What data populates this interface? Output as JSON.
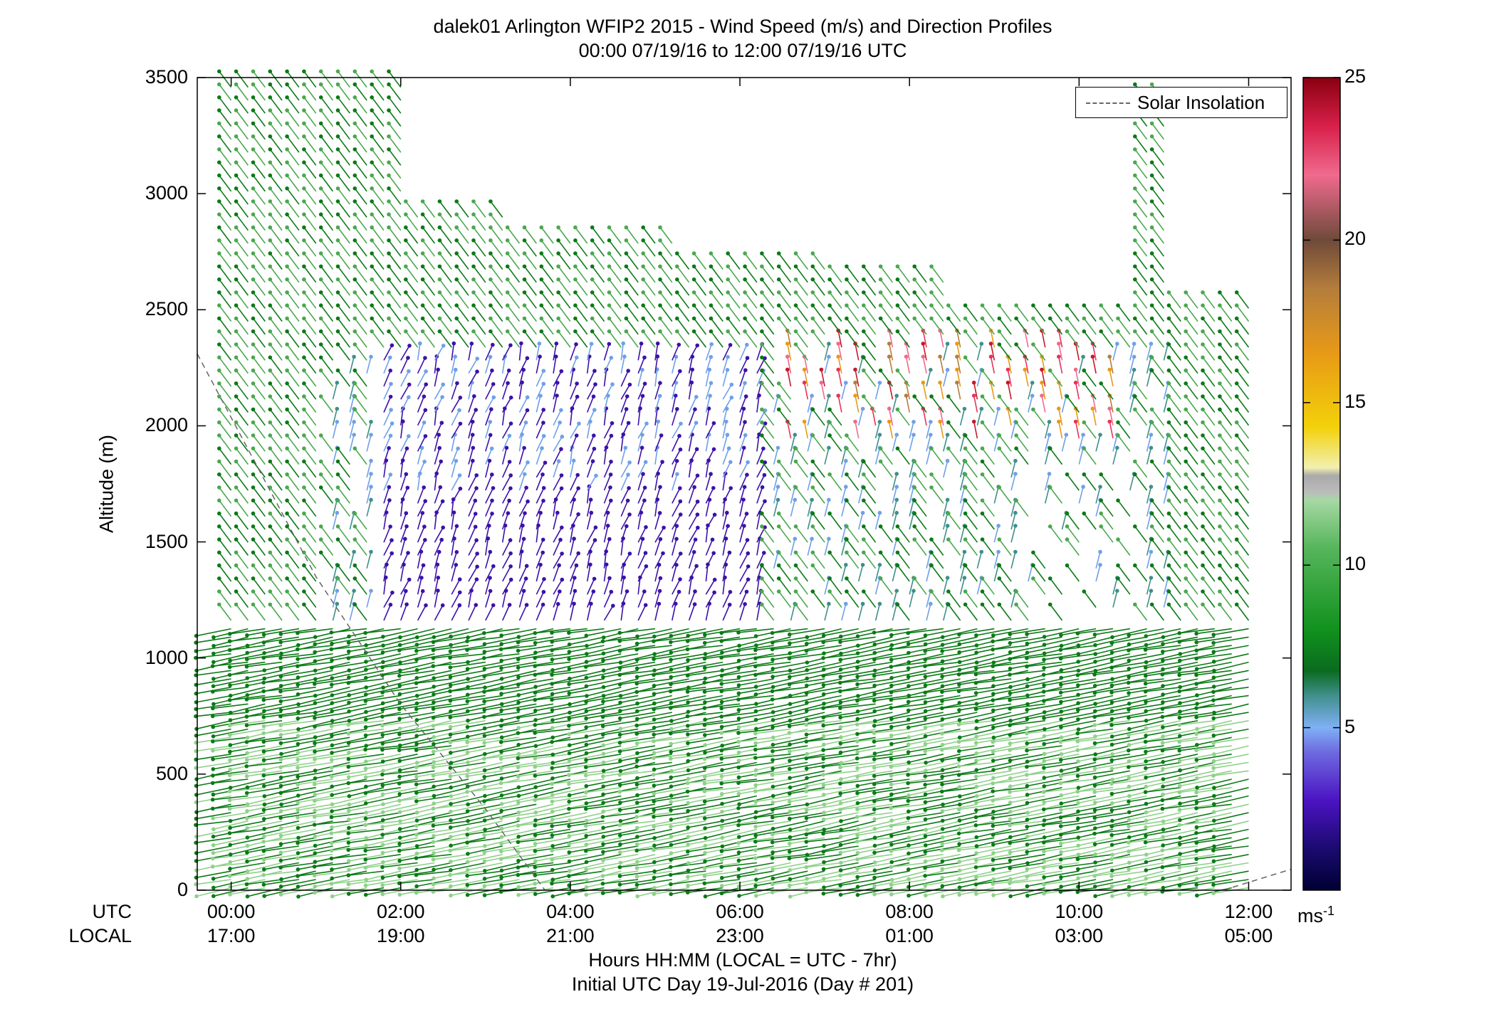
{
  "title_line1": "dalek01 Arlington WFIP2 2015 - Wind Speed (m/s) and Direction Profiles",
  "title_line2": "00:00 07/19/16 to 12:00 07/19/16  UTC",
  "y_label": "Altitude (m)",
  "xlabel_line1": "Hours HH:MM  (LOCAL = UTC - 7hr)",
  "xlabel_line2": "Initial UTC Day 19-Jul-2016 (Day # 201)",
  "row_label_utc": "UTC",
  "row_label_local": "LOCAL",
  "legend_label": "Solar Insolation",
  "colorbar_unit": "ms",
  "colorbar_unit_exp": "-1",
  "colorbar_ticks": [
    "25",
    "20",
    "15",
    "10",
    "5"
  ],
  "colorbar_tick_values": [
    25,
    20,
    15,
    10,
    5
  ],
  "colorbar_range": [
    0,
    25
  ],
  "colors": {
    "green_dark": "#0b7a16",
    "green_light": "#8fd18a",
    "blue": "#6fa0e8",
    "purple": "#3b12a8",
    "teal": "#3f8f8a"
  },
  "chart_data": {
    "type": "wind-barb profile",
    "title": "dalek01 Arlington WFIP2 2015 - Wind Speed (m/s) and Direction Profiles",
    "xlabel": "Hours HH:MM  (LOCAL = UTC - 7hr)",
    "ylabel": "Altitude (m)",
    "x_range_hours_utc": [
      -0.4,
      12.5
    ],
    "ylim": [
      0,
      3500
    ],
    "y_ticks": [
      0,
      500,
      1000,
      1500,
      2000,
      2500,
      3000,
      3500
    ],
    "x_ticks_utc": [
      "00:00",
      "02:00",
      "04:00",
      "06:00",
      "08:00",
      "10:00",
      "12:00"
    ],
    "x_ticks_local": [
      "17:00",
      "19:00",
      "21:00",
      "23:00",
      "01:00",
      "03:00",
      "05:00"
    ],
    "x_tick_hours": [
      0,
      2,
      4,
      6,
      8,
      10,
      12
    ],
    "series": [
      {
        "name": "Solar Insolation",
        "style": "dashed gray line",
        "points": [
          [
            -0.4,
            2310
          ],
          [
            1.0,
            1350
          ],
          [
            2.0,
            800
          ],
          [
            3.0,
            350
          ],
          [
            3.7,
            0
          ]
        ],
        "points_end": [
          [
            11.7,
            0
          ],
          [
            12.5,
            90
          ]
        ]
      }
    ],
    "regions": [
      {
        "hours": [
          0,
          12
        ],
        "altitude": [
          0,
          1150
        ],
        "speed_ms": "7-11",
        "note": "green, near-westerly flow"
      },
      {
        "hours": [
          1.5,
          6.3
        ],
        "altitude": [
          1100,
          2300
        ],
        "speed_ms": "1-4",
        "note": "purple/blue light winds"
      },
      {
        "hours": [
          6.5,
          10.5
        ],
        "altitude": [
          1900,
          2350
        ],
        "speed_ms": "14-22",
        "note": "red/orange strong winds"
      },
      {
        "hours": [
          0,
          12
        ],
        "altitude": [
          2300,
          3500
        ],
        "speed_ms": "6-9",
        "note": "green"
      }
    ]
  }
}
